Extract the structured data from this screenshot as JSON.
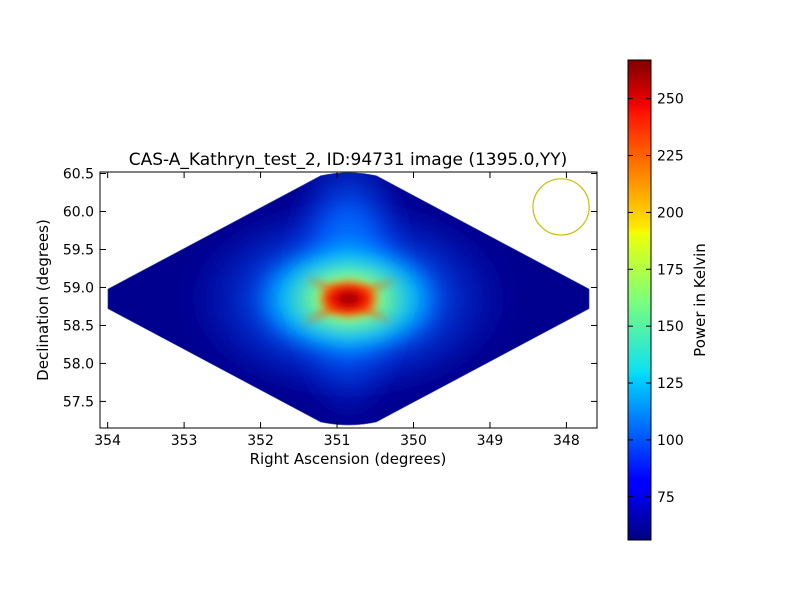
{
  "chart_data": {
    "type": "heatmap",
    "title": "CAS-A_Kathryn_test_2, ID:94731 image (1395.0,YY)",
    "xlabel": "Right Ascension (degrees)",
    "ylabel": "Declination (degrees)",
    "xlim": [
      354.1,
      347.6
    ],
    "ylim": [
      57.15,
      60.52
    ],
    "x_ticks": [
      354,
      353,
      352,
      351,
      350,
      349,
      348
    ],
    "y_ticks": [
      57.5,
      58.0,
      58.5,
      59.0,
      59.5,
      60.0,
      60.5
    ],
    "x_tick_labels": [
      "354",
      "353",
      "352",
      "351",
      "350",
      "349",
      "348"
    ],
    "y_tick_labels": [
      "57.5",
      "58.0",
      "58.5",
      "59.0",
      "59.5",
      "60.0",
      "60.5"
    ],
    "field": {
      "ra_center": 350.85,
      "dec_center": 58.85,
      "ra_left": 354.0,
      "ra_right": 347.7,
      "dec_top": 60.5,
      "dec_bottom": 57.2
    },
    "peak": {
      "ra": 350.85,
      "dec": 58.85,
      "value": 266
    },
    "background_value": 56,
    "beam_circle": {
      "ra": 348.07,
      "dec": 60.06,
      "radius_deg": 0.37,
      "color": "#c8c000"
    },
    "colorbar": {
      "label": "Power in Kelvin",
      "min": 56,
      "max": 267,
      "ticks": [
        75,
        100,
        125,
        150,
        175,
        200,
        225,
        250
      ],
      "tick_labels": [
        "75",
        "100",
        "125",
        "150",
        "175",
        "200",
        "225",
        "250"
      ],
      "colormap": "jet"
    },
    "grid": false
  }
}
